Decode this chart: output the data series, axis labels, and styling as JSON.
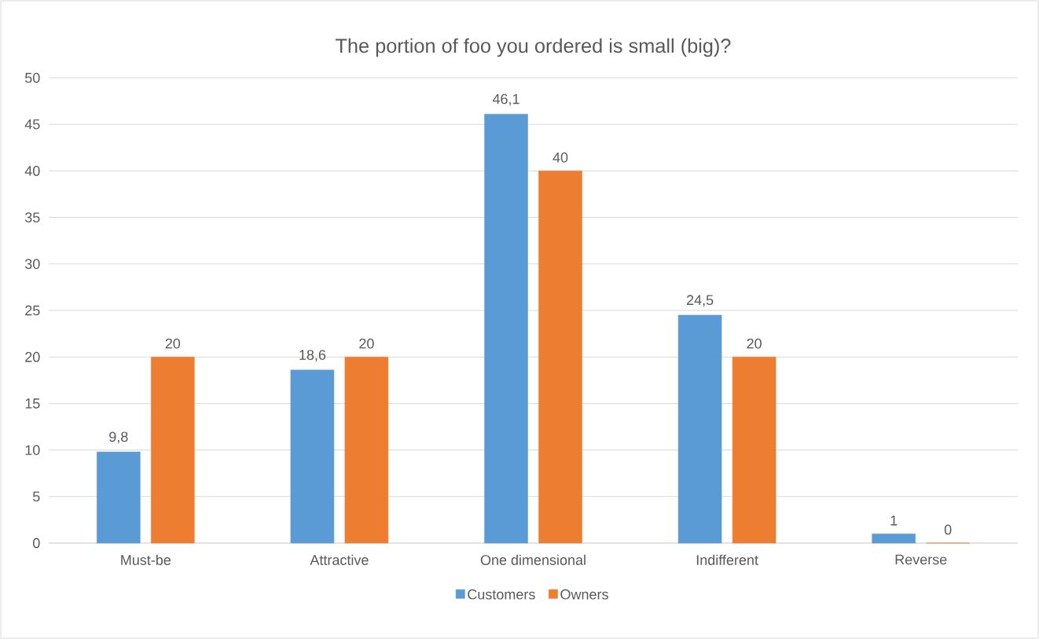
{
  "chart_data": {
    "type": "bar",
    "title": "The portion of foo you ordered is small (big)?",
    "categories": [
      "Must-be",
      "Attractive",
      "One dimensional",
      "Indifferent",
      "Reverse"
    ],
    "series": [
      {
        "name": "Customers",
        "color": "#5b9bd5",
        "values": [
          9.8,
          18.6,
          46.1,
          24.5,
          1
        ],
        "value_labels": [
          "9,8",
          "18,6",
          "46,1",
          "24,5",
          "1"
        ]
      },
      {
        "name": "Owners",
        "color": "#ed7d31",
        "values": [
          20,
          20,
          40,
          20,
          0
        ],
        "value_labels": [
          "20",
          "20",
          "40",
          "20",
          "0"
        ]
      }
    ],
    "ylim": [
      0,
      50
    ],
    "yticks": [
      0,
      5,
      10,
      15,
      20,
      25,
      30,
      35,
      40,
      45,
      50
    ],
    "grid": "y",
    "legend": "bottom"
  }
}
